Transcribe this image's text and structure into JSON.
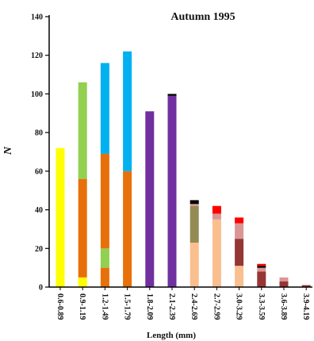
{
  "chart_data": {
    "type": "bar",
    "stacked": true,
    "title": "Autumn 1995",
    "xlabel": "Length  (mm)",
    "ylabel": "N",
    "ylim": [
      0,
      140
    ],
    "yticks": [
      0,
      20,
      40,
      60,
      80,
      100,
      120,
      140
    ],
    "grid": false,
    "legend": "none",
    "categories": [
      "0.6-0.89",
      "0.9-1.19",
      "1.2-1.49",
      "1.5-1.79",
      "1.8-2.09",
      "2.1-2.39",
      "2.4-2.69",
      "2.7-2.99",
      "3.0-3.29",
      "3.3-3.59",
      "3.6-3.89",
      "3.9-4.19"
    ],
    "series": [
      {
        "color": "#ffff00",
        "values": [
          72,
          5,
          0,
          0,
          0,
          0,
          0,
          0,
          0,
          0,
          0,
          0
        ]
      },
      {
        "color": "#e8700a",
        "values": [
          0,
          51,
          10,
          60,
          0,
          0,
          0,
          0,
          0,
          0,
          0,
          0
        ]
      },
      {
        "color": "#92d050",
        "values": [
          0,
          50,
          10,
          0,
          0,
          0,
          0,
          0,
          0,
          0,
          0,
          0
        ]
      },
      {
        "color": "#e8700a",
        "values": [
          0,
          0,
          49,
          0,
          0,
          0,
          0,
          0,
          0,
          0,
          0,
          0
        ]
      },
      {
        "color": "#00b0f0",
        "values": [
          0,
          0,
          47,
          62,
          0,
          0,
          0,
          0,
          0,
          0,
          0,
          0
        ]
      },
      {
        "color": "#7030a0",
        "values": [
          0,
          0,
          0,
          0,
          91,
          99,
          0,
          0,
          0,
          0,
          0,
          0
        ]
      },
      {
        "color": "#fabf8f",
        "values": [
          0,
          0,
          0,
          0,
          0,
          0,
          23,
          35,
          11,
          0,
          0,
          0
        ]
      },
      {
        "color": "#948a54",
        "values": [
          0,
          0,
          0,
          0,
          0,
          0,
          19,
          0,
          0,
          0,
          0,
          0
        ]
      },
      {
        "color": "#963634",
        "values": [
          0,
          0,
          0,
          0,
          0,
          0,
          0,
          0,
          14,
          8,
          3,
          1
        ]
      },
      {
        "color": "#da9694",
        "values": [
          0,
          0,
          0,
          0,
          0,
          0,
          1,
          3,
          8,
          2,
          2,
          0
        ]
      },
      {
        "color": "#000000",
        "values": [
          0,
          0,
          0,
          0,
          0,
          1,
          2,
          0,
          0,
          1,
          0,
          0
        ]
      },
      {
        "color": "#ff0000",
        "values": [
          0,
          0,
          0,
          0,
          0,
          0,
          0,
          4,
          3,
          1,
          0,
          0
        ]
      }
    ]
  }
}
